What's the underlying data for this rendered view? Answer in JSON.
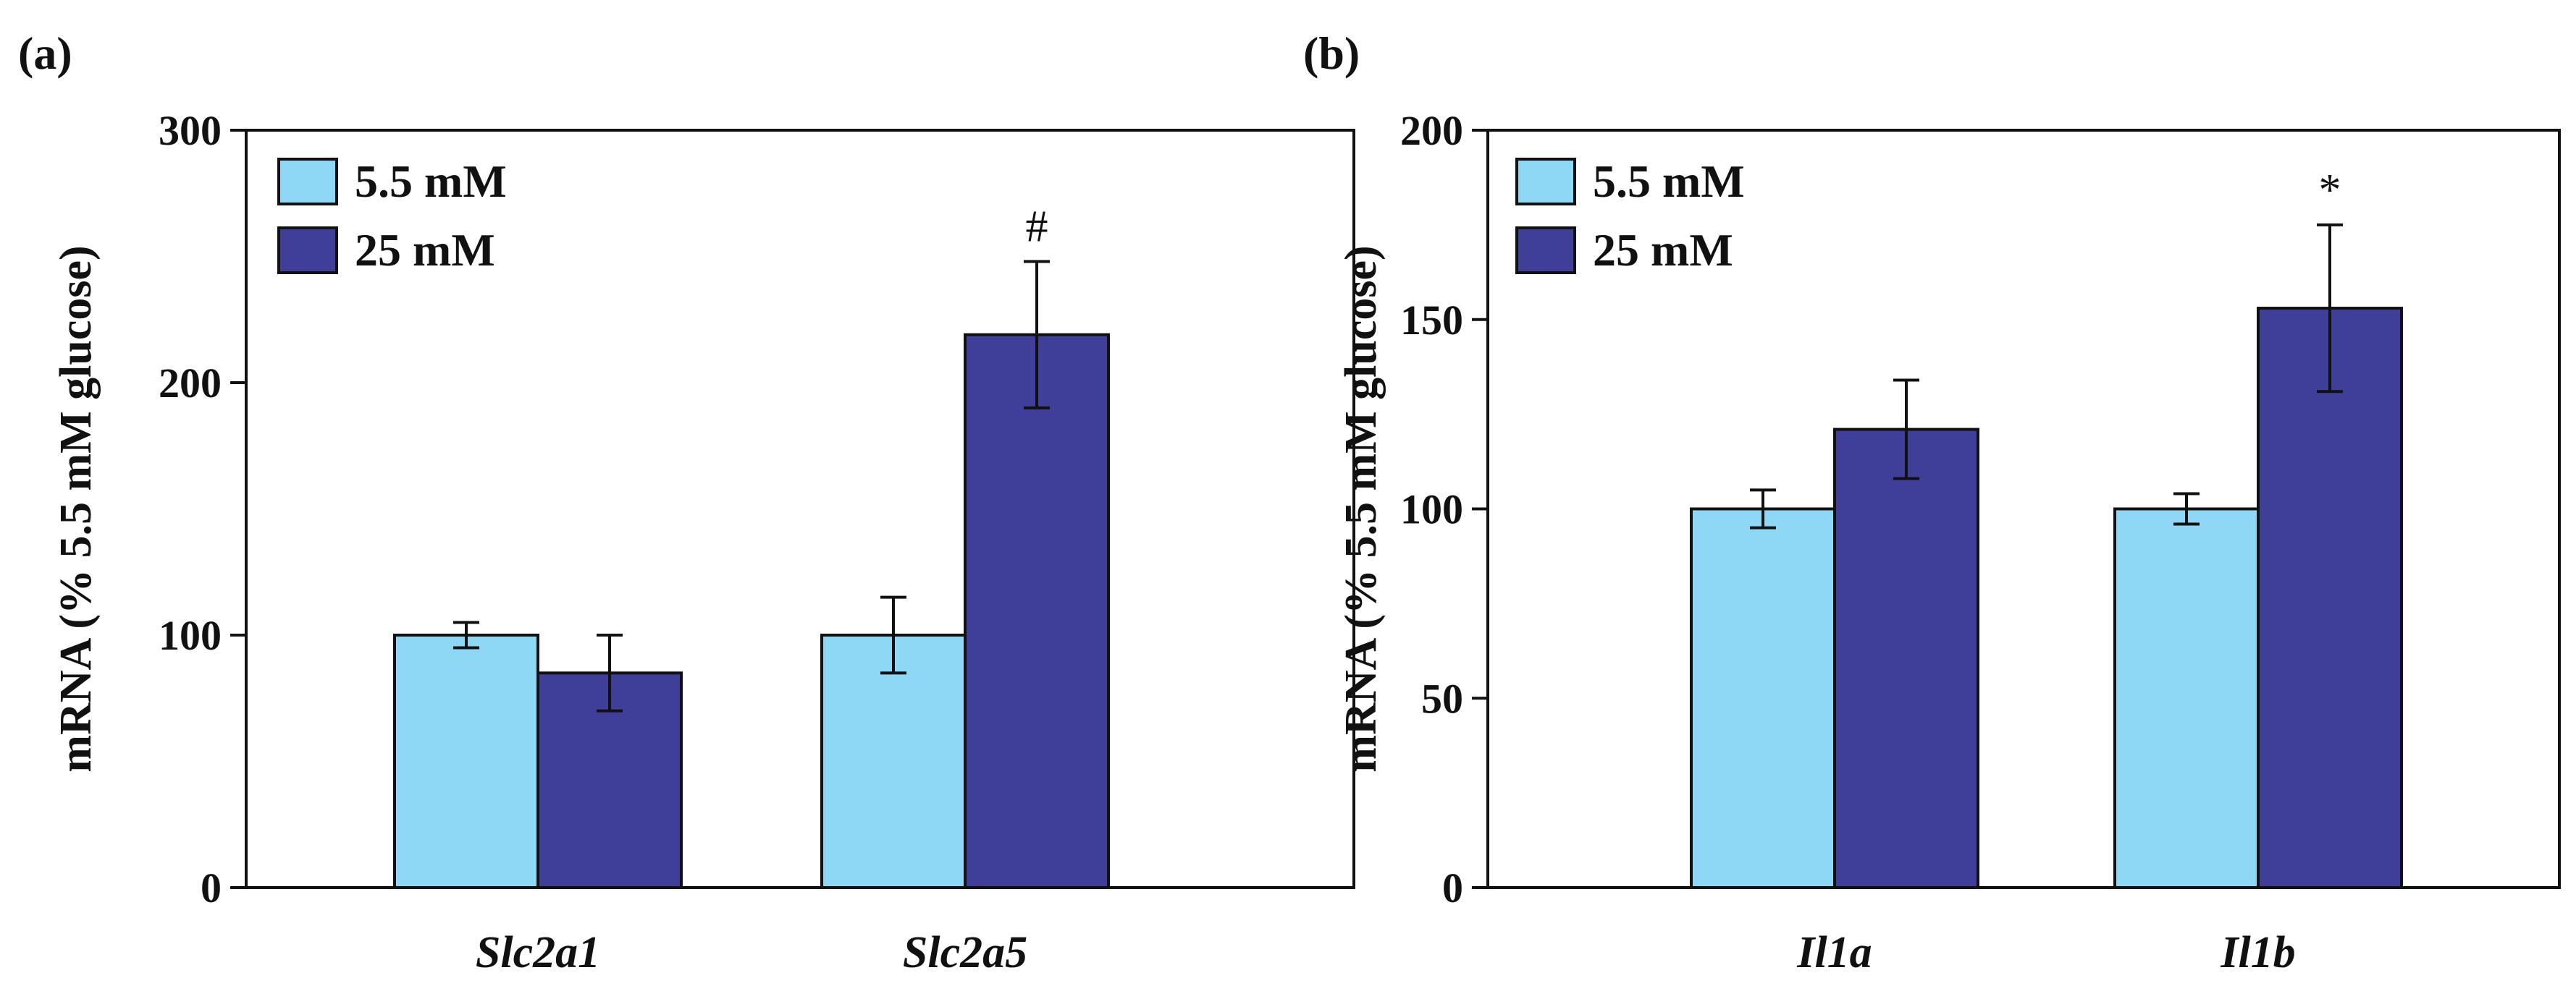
{
  "colors": {
    "series_light": "#8fd8f5",
    "series_dark": "#3f3f99",
    "axis": "#111111"
  },
  "chart_data": [
    {
      "type": "bar",
      "panel_label": "(a)",
      "title": "",
      "xlabel": "",
      "ylabel": "mRNA (% 5.5 mM glucose)",
      "ylim": [
        0,
        300
      ],
      "yticks": [
        "0",
        "100",
        "200",
        "300"
      ],
      "categories": [
        "Slc2a1",
        "Slc2a5"
      ],
      "series": [
        {
          "name": "5.5 mM",
          "values": [
            100,
            100
          ],
          "errors": [
            5,
            15
          ]
        },
        {
          "name": "25 mM",
          "values": [
            85,
            219
          ],
          "errors": [
            15,
            29
          ]
        }
      ],
      "annotations": [
        {
          "text": "#",
          "category": 1,
          "series": 1
        }
      ],
      "legend_position": "top-left",
      "grid": false
    },
    {
      "type": "bar",
      "panel_label": "(b)",
      "title": "",
      "xlabel": "",
      "ylabel": "mRNA (% 5.5 mM glucose)",
      "ylim": [
        0,
        200
      ],
      "yticks": [
        "0",
        "50",
        "100",
        "150",
        "200"
      ],
      "categories": [
        "Il1a",
        "Il1b"
      ],
      "series": [
        {
          "name": "5.5 mM",
          "values": [
            100,
            100
          ],
          "errors": [
            5,
            4
          ]
        },
        {
          "name": "25 mM",
          "values": [
            121,
            153
          ],
          "errors": [
            13,
            22
          ]
        }
      ],
      "annotations": [
        {
          "text": "*",
          "category": 1,
          "series": 1
        }
      ],
      "legend_position": "top-left",
      "grid": false
    }
  ]
}
